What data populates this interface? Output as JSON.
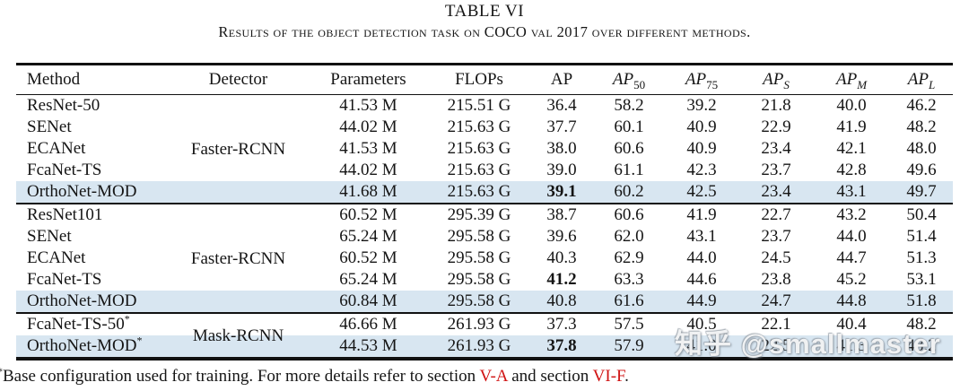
{
  "title": "TABLE VI",
  "subtitle": "Results of the object detection task on COCO val 2017 over different methods.",
  "header": {
    "method": "Method",
    "detector": "Detector",
    "parameters": "Parameters",
    "flops": "FLOPs",
    "metrics": [
      {
        "main": "AP",
        "sub": ""
      },
      {
        "main": "AP",
        "sub": "50"
      },
      {
        "main": "AP",
        "sub": "75"
      },
      {
        "main": "AP",
        "sub": "S"
      },
      {
        "main": "AP",
        "sub": "M"
      },
      {
        "main": "AP",
        "sub": "L"
      }
    ]
  },
  "groups": [
    {
      "detector": "Faster-RCNN",
      "rows": [
        {
          "method": "ResNet-50",
          "parameters": "41.53 M",
          "flops": "215.51 G",
          "metrics": [
            "36.4",
            "58.2",
            "39.2",
            "21.8",
            "40.0",
            "46.2"
          ],
          "ap_bold": false,
          "highlight": false
        },
        {
          "method": "SENet",
          "parameters": "44.02 M",
          "flops": "215.63 G",
          "metrics": [
            "37.7",
            "60.1",
            "40.9",
            "22.9",
            "41.9",
            "48.2"
          ],
          "ap_bold": false,
          "highlight": false
        },
        {
          "method": "ECANet",
          "parameters": "41.53 M",
          "flops": "215.63 G",
          "metrics": [
            "38.0",
            "60.6",
            "40.9",
            "23.4",
            "42.1",
            "48.0"
          ],
          "ap_bold": false,
          "highlight": false
        },
        {
          "method": "FcaNet-TS",
          "parameters": "44.02 M",
          "flops": "215.63 G",
          "metrics": [
            "39.0",
            "61.1",
            "42.3",
            "23.7",
            "42.8",
            "49.6"
          ],
          "ap_bold": false,
          "highlight": false
        },
        {
          "method": "OrthoNet-MOD",
          "parameters": "41.68 M",
          "flops": "215.63 G",
          "metrics": [
            "39.1",
            "60.2",
            "42.5",
            "23.4",
            "43.1",
            "49.7"
          ],
          "ap_bold": true,
          "highlight": true
        }
      ]
    },
    {
      "detector": "Faster-RCNN",
      "rows": [
        {
          "method": "ResNet101",
          "parameters": "60.52 M",
          "flops": "295.39 G",
          "metrics": [
            "38.7",
            "60.6",
            "41.9",
            "22.7",
            "43.2",
            "50.4"
          ],
          "ap_bold": false,
          "highlight": false
        },
        {
          "method": "SENet",
          "parameters": "65.24 M",
          "flops": "295.58 G",
          "metrics": [
            "39.6",
            "62.0",
            "43.1",
            "23.7",
            "44.0",
            "51.4"
          ],
          "ap_bold": false,
          "highlight": false
        },
        {
          "method": "ECANet",
          "parameters": "60.52 M",
          "flops": "295.58 G",
          "metrics": [
            "40.3",
            "62.9",
            "44.0",
            "24.5",
            "44.7",
            "51.3"
          ],
          "ap_bold": false,
          "highlight": false
        },
        {
          "method": "FcaNet-TS",
          "parameters": "65.24 M",
          "flops": "295.58 G",
          "metrics": [
            "41.2",
            "63.3",
            "44.6",
            "23.8",
            "45.2",
            "53.1"
          ],
          "ap_bold": true,
          "highlight": false
        },
        {
          "method": "OrthoNet-MOD",
          "parameters": "60.84 M",
          "flops": "295.58 G",
          "metrics": [
            "40.8",
            "61.6",
            "44.9",
            "24.7",
            "44.8",
            "51.8"
          ],
          "ap_bold": false,
          "highlight": true
        }
      ]
    },
    {
      "detector": "Mask-RCNN",
      "rows": [
        {
          "method": "FcaNet-TS-50*",
          "parameters": "46.66 M",
          "flops": "261.93 G",
          "metrics": [
            "37.3",
            "57.5",
            "40.5",
            "22.1",
            "40.4",
            "48.2"
          ],
          "ap_bold": false,
          "highlight": false
        },
        {
          "method": "OrthoNet-MOD*",
          "parameters": "44.53 M",
          "flops": "261.93 G",
          "metrics": [
            "37.8",
            "57.9",
            "41.0",
            "22.5",
            "41.3",
            "48.2"
          ],
          "ap_bold": true,
          "highlight": true
        }
      ]
    }
  ],
  "footnote": {
    "marker": "*",
    "text_before": "Base configuration used for training. For more details refer to section ",
    "link1": "V-A",
    "text_mid": " and section ",
    "link2": "VI-F",
    "text_after": "."
  },
  "watermark": {
    "text": "知乎 @smallmaster"
  },
  "colors": {
    "highlight_row": "#d8e6f1",
    "section_link_red": "#d01212",
    "rule": "#111111"
  }
}
